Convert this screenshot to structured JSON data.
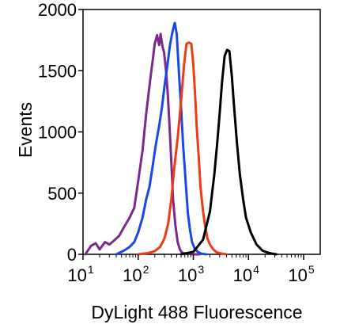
{
  "chart_data": {
    "type": "line",
    "title": "",
    "xlabel": "DyLight 488 Fluorescence",
    "ylabel": "Events",
    "xscale": "log",
    "xlim": [
      10,
      200000
    ],
    "ylim": [
      0,
      2000
    ],
    "yticks": [
      {
        "value": 0,
        "label": "0"
      },
      {
        "value": 500,
        "label": "500"
      },
      {
        "value": 1000,
        "label": "1000"
      },
      {
        "value": 1500,
        "label": "1500"
      },
      {
        "value": 2000,
        "label": "2000"
      }
    ],
    "xticks": [
      {
        "value": 10,
        "base": "10",
        "exp": "1"
      },
      {
        "value": 100,
        "base": "10",
        "exp": "2"
      },
      {
        "value": 1000,
        "base": "10",
        "exp": "3"
      },
      {
        "value": 10000,
        "base": "10",
        "exp": "4"
      },
      {
        "value": 100000,
        "base": "10",
        "exp": "5"
      }
    ],
    "grid": false,
    "legend": "none",
    "series": [
      {
        "color": "#7b2a8c",
        "x": [
          11,
          14,
          17,
          20,
          25,
          30,
          36,
          45,
          55,
          70,
          85,
          100,
          120,
          140,
          165,
          185,
          200,
          220,
          240,
          255,
          275,
          295,
          320,
          345,
          370,
          400,
          430,
          470,
          520,
          570,
          620,
          680,
          750,
          850,
          1000,
          1300
        ],
        "y": [
          0,
          70,
          90,
          40,
          100,
          80,
          110,
          150,
          220,
          300,
          380,
          600,
          850,
          1150,
          1420,
          1600,
          1720,
          1790,
          1710,
          1800,
          1700,
          1650,
          1500,
          1300,
          1050,
          750,
          450,
          250,
          100,
          40,
          15,
          8,
          5,
          3,
          0,
          0
        ]
      },
      {
        "color": "#1a47e6",
        "x": [
          40,
          55,
          70,
          85,
          100,
          120,
          140,
          160,
          180,
          210,
          240,
          270,
          300,
          340,
          380,
          420,
          460,
          500,
          530,
          560,
          600,
          650,
          700,
          750,
          800,
          870,
          950,
          1050,
          1200,
          1400,
          1700
        ],
        "y": [
          0,
          30,
          60,
          100,
          180,
          300,
          450,
          550,
          700,
          900,
          1050,
          1200,
          1370,
          1550,
          1720,
          1820,
          1890,
          1800,
          1600,
          1420,
          1200,
          900,
          700,
          500,
          330,
          200,
          100,
          50,
          20,
          5,
          0
        ]
      },
      {
        "color": "#f03a14",
        "x": [
          100,
          150,
          200,
          250,
          300,
          350,
          400,
          450,
          520,
          600,
          680,
          750,
          830,
          920,
          1000,
          1080,
          1150,
          1250,
          1350,
          1500,
          1650,
          1800,
          2000,
          2300,
          2700,
          3300,
          4000
        ],
        "y": [
          0,
          10,
          25,
          60,
          130,
          250,
          450,
          700,
          950,
          1250,
          1550,
          1720,
          1730,
          1720,
          1550,
          1300,
          1050,
          800,
          550,
          350,
          220,
          130,
          80,
          40,
          15,
          5,
          0
        ]
      },
      {
        "color": "#000000",
        "x": [
          600,
          1000,
          1500,
          2000,
          2400,
          2700,
          3000,
          3300,
          3700,
          4100,
          4500,
          5000,
          5500,
          6200,
          7000,
          8000,
          9000,
          11000,
          14000,
          18000,
          22000,
          27000,
          32000
        ],
        "y": [
          0,
          20,
          120,
          350,
          650,
          900,
          1150,
          1400,
          1620,
          1670,
          1660,
          1450,
          1200,
          900,
          650,
          450,
          300,
          180,
          80,
          30,
          15,
          5,
          0
        ]
      }
    ]
  }
}
